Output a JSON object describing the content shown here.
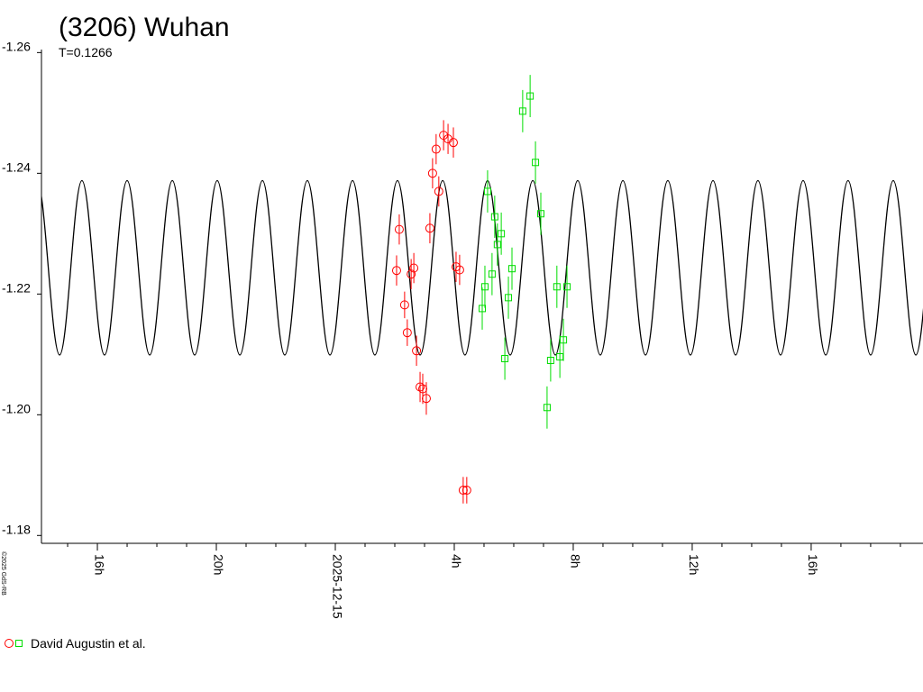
{
  "chart_data": {
    "type": "scatter",
    "title": "(3206) Wuhan",
    "subtitle": "T=0.1266",
    "credit": "©2025 GdS-RB",
    "xlim": [
      -9.88,
      19.76
    ],
    "ylim": [
      -1.1787,
      -1.2605
    ],
    "xticks": [
      {
        "value": -8,
        "label": "16h"
      },
      {
        "value": -4,
        "label": "20h"
      },
      {
        "value": 0,
        "label": "2025-12-15"
      },
      {
        "value": 4,
        "label": "4h"
      },
      {
        "value": 8,
        "label": "8h"
      },
      {
        "value": 12,
        "label": "12h"
      },
      {
        "value": 16,
        "label": "16h"
      }
    ],
    "xminorticks": [
      -9,
      -7,
      -6,
      -5,
      -3,
      -2,
      -1,
      1,
      2,
      3,
      5,
      6,
      7,
      9,
      10,
      11,
      13,
      14,
      15,
      17,
      18,
      19
    ],
    "yticks": [
      -1.26,
      -1.24,
      -1.22,
      {
        "value": -1.2,
        "label": "-1.20"
      },
      -1.18
    ],
    "series": [
      {
        "name": "David Augustin et al.",
        "color": "#ff0000",
        "marker": "circle",
        "x": [
          2.06,
          2.15,
          2.33,
          2.42,
          2.55,
          2.64,
          2.73,
          2.85,
          2.94,
          3.06,
          3.18,
          3.27,
          3.39,
          3.48,
          3.64,
          3.79,
          3.97,
          4.06,
          4.18,
          4.3,
          4.42
        ],
        "values": [
          -1.2239,
          -1.2307,
          -1.2182,
          -1.2136,
          -1.2233,
          -1.2243,
          -1.2106,
          -1.2046,
          -1.2043,
          -1.2027,
          -1.2309,
          -1.24,
          -1.244,
          -1.237,
          -1.2463,
          -1.2457,
          -1.2451,
          -1.2245,
          -1.224,
          -1.1875,
          -1.1875
        ],
        "errors": [
          0.0025,
          0.0025,
          0.0022,
          0.0022,
          0.0025,
          0.0025,
          0.0025,
          0.0025,
          0.0025,
          0.0027,
          0.0025,
          0.0025,
          0.0025,
          0.0025,
          0.0025,
          0.0025,
          0.0025,
          0.0025,
          0.0025,
          0.0022,
          0.0022
        ]
      },
      {
        "color": "#00dd00",
        "marker": "square",
        "x": [
          4.94,
          5.03,
          5.12,
          5.27,
          5.36,
          5.45,
          5.58,
          5.7,
          5.82,
          5.94,
          6.3,
          6.55,
          6.73,
          6.91,
          7.12,
          7.24,
          7.45,
          7.55,
          7.67,
          7.79
        ],
        "values": [
          -1.2176,
          -1.2212,
          -1.237,
          -1.2233,
          -1.2328,
          -1.2282,
          -1.23,
          -1.2093,
          -1.2194,
          -1.2242,
          -1.2503,
          -1.2528,
          -1.2418,
          -1.2333,
          -1.2012,
          -1.209,
          -1.2212,
          -1.2096,
          -1.2124,
          -1.2212
        ],
        "errors": [
          0.0035,
          0.0035,
          0.0035,
          0.0035,
          0.0035,
          0.0035,
          0.0035,
          0.0035,
          0.0035,
          0.0035,
          0.0035,
          0.0035,
          0.0035,
          0.0035,
          0.0035,
          0.0035,
          0.0035,
          0.0035,
          0.0035,
          0.0035
        ]
      },
      {
        "color": "#000000",
        "style": "line",
        "x": [
          -10.03,
          -9.27,
          -8.52,
          -7.76,
          -7.0,
          -6.24,
          -5.48,
          -4.73,
          -3.97,
          -3.21,
          -2.45,
          -1.7,
          -0.94,
          -0.18,
          0.58,
          1.33,
          2.09,
          2.85,
          3.61,
          4.36,
          5.12,
          5.88,
          6.64,
          7.4,
          8.15,
          8.91,
          9.67,
          10.43,
          11.18,
          11.94,
          12.7,
          13.46,
          14.21,
          14.97,
          15.73,
          16.49,
          17.24,
          18.0,
          18.76,
          19.52,
          20.27
        ],
        "values": [
          -1.2388,
          -1.2099,
          -1.2388,
          -1.2099,
          -1.2388,
          -1.2099,
          -1.2388,
          -1.2099,
          -1.2388,
          -1.2099,
          -1.2388,
          -1.2099,
          -1.2388,
          -1.2099,
          -1.2388,
          -1.2099,
          -1.2388,
          -1.2099,
          -1.2388,
          -1.2099,
          -1.2388,
          -1.2099,
          -1.2388,
          -1.2099,
          -1.2388,
          -1.2099,
          -1.2388,
          -1.2099,
          -1.2388,
          -1.2099,
          -1.2388,
          -1.2099,
          -1.2388,
          -1.2099,
          -1.2388,
          -1.2099,
          -1.2388,
          -1.2099,
          -1.2388,
          -1.2099,
          -1.2388
        ]
      }
    ]
  }
}
